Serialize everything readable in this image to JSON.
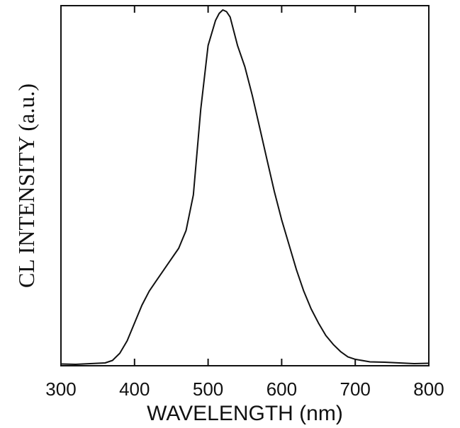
{
  "chart_data": {
    "type": "line",
    "title": "",
    "xlabel": "WAVELENGTH (nm)",
    "ylabel": "CL INTENSITY (a.u.)",
    "xlim": [
      300,
      800
    ],
    "ylim": [
      0,
      1
    ],
    "x_ticks": [
      "300",
      "400",
      "500",
      "600",
      "700",
      "800"
    ],
    "grid": false,
    "legend": "none",
    "colors": {
      "line": "#111111",
      "axis": "#111111"
    },
    "series": [
      {
        "x": [
          300,
          320,
          340,
          360,
          370,
          380,
          390,
          400,
          410,
          420,
          430,
          440,
          450,
          460,
          470,
          480,
          490,
          500,
          510,
          515,
          520,
          525,
          530,
          540,
          550,
          560,
          570,
          580,
          590,
          600,
          610,
          620,
          630,
          640,
          650,
          660,
          670,
          680,
          690,
          700,
          720,
          740,
          760,
          780,
          800
        ],
        "values": [
          0.005,
          0.004,
          0.006,
          0.008,
          0.015,
          0.035,
          0.07,
          0.12,
          0.17,
          0.21,
          0.24,
          0.27,
          0.3,
          0.33,
          0.38,
          0.48,
          0.72,
          0.9,
          0.97,
          0.99,
          1.0,
          0.995,
          0.98,
          0.9,
          0.84,
          0.76,
          0.67,
          0.58,
          0.49,
          0.41,
          0.34,
          0.27,
          0.21,
          0.16,
          0.12,
          0.085,
          0.06,
          0.04,
          0.025,
          0.018,
          0.011,
          0.01,
          0.008,
          0.006,
          0.007
        ]
      }
    ]
  }
}
